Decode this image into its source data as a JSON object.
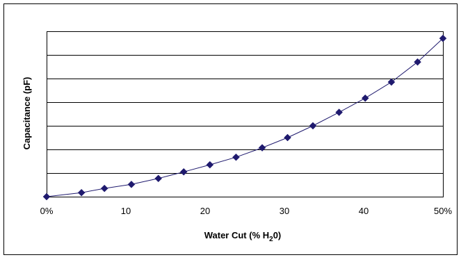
{
  "chart_data": {
    "type": "scatter",
    "title": "",
    "xlabel": "Water Cut  (% H",
    "xlabel_subscript": "2",
    "xlabel_suffix": "0)",
    "ylabel": "Capacitance (pF)",
    "xlim": [
      0,
      50
    ],
    "ylim": [
      0,
      7
    ],
    "grid": "horizontal",
    "marker": "diamond",
    "connected": true,
    "colors": {
      "series": "#1f1a6e",
      "gridline": "#000000",
      "frame": "#000000"
    },
    "x_ticks": [
      {
        "value": 0,
        "label": "0%"
      },
      {
        "value": 10,
        "label": "10"
      },
      {
        "value": 20,
        "label": "20"
      },
      {
        "value": 30,
        "label": "30"
      },
      {
        "value": 40,
        "label": "40"
      },
      {
        "value": 50,
        "label": "50%"
      }
    ],
    "y_gridlines": [
      1,
      2,
      3,
      4,
      5,
      6,
      7
    ],
    "series": [
      {
        "x": [
          0,
          4.4,
          7.3,
          10.7,
          14.1,
          17.3,
          20.6,
          23.9,
          27.2,
          30.4,
          33.6,
          36.9,
          40.2,
          43.5,
          46.8,
          50
        ],
        "y": [
          0.0,
          0.17,
          0.35,
          0.52,
          0.77,
          1.05,
          1.35,
          1.67,
          2.07,
          2.5,
          3.0,
          3.57,
          4.17,
          4.85,
          5.7,
          6.7
        ]
      }
    ]
  }
}
